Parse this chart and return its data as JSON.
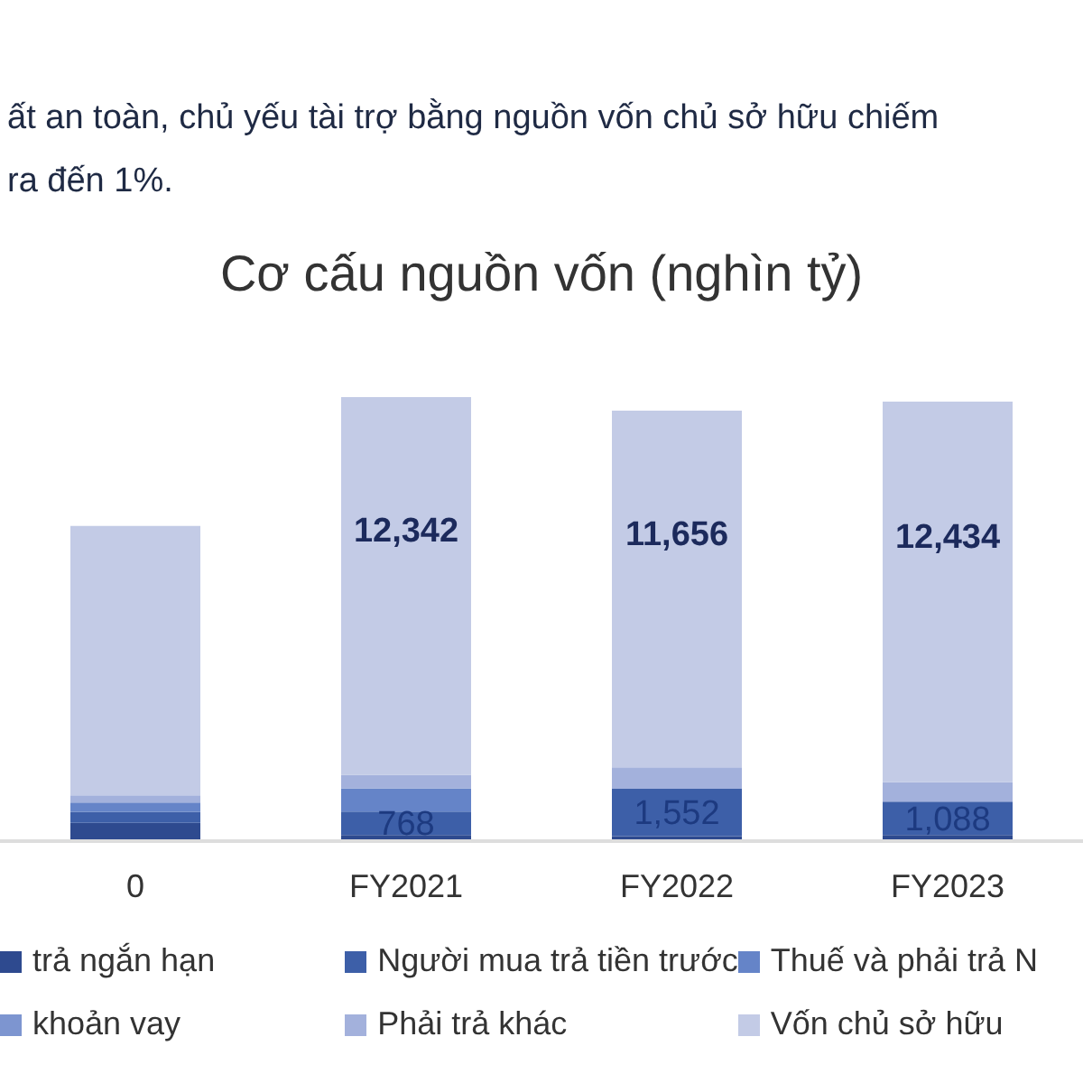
{
  "chart_data": {
    "type": "bar",
    "title": "Cơ cấu nguồn vốn (nghìn tỷ)",
    "annotations": [
      "ất an toàn, chủ yếu tài trợ bằng nguồn vốn chủ sở hữu chiếm",
      "ra đến 1%."
    ],
    "categories": [
      "0",
      "FY2021",
      "FY2022",
      "FY2023"
    ],
    "stacked": true,
    "legend": "bottom",
    "grid": false,
    "series": [
      {
        "name": "trả ngắn hạn",
        "color": "#2e4a8f",
        "values": [
          600,
          200,
          160,
          200
        ]
      },
      {
        "name": "Người mua trả tiền trước",
        "color": "#3d5fa8",
        "values": [
          360,
          768,
          1552,
          1088
        ],
        "value_labels": [
          null,
          "768",
          "1,552",
          "1,088"
        ]
      },
      {
        "name": "Thuế và phải trả N",
        "color": "#6584c8",
        "values": [
          300,
          760,
          null,
          null
        ]
      },
      {
        "name": "khoản vay",
        "color": "#7d95d0",
        "values": [
          null,
          null,
          null,
          null
        ]
      },
      {
        "name": "Phải trả khác",
        "color": "#a3b1dc",
        "values": [
          240,
          440,
          700,
          640
        ]
      },
      {
        "name": "Vốn chủ sở hữu",
        "color": "#c3cbe6",
        "values": [
          8800,
          12342,
          11656,
          12434
        ],
        "value_labels": [
          null,
          "12,342",
          "11,656",
          "12,434"
        ]
      }
    ]
  }
}
